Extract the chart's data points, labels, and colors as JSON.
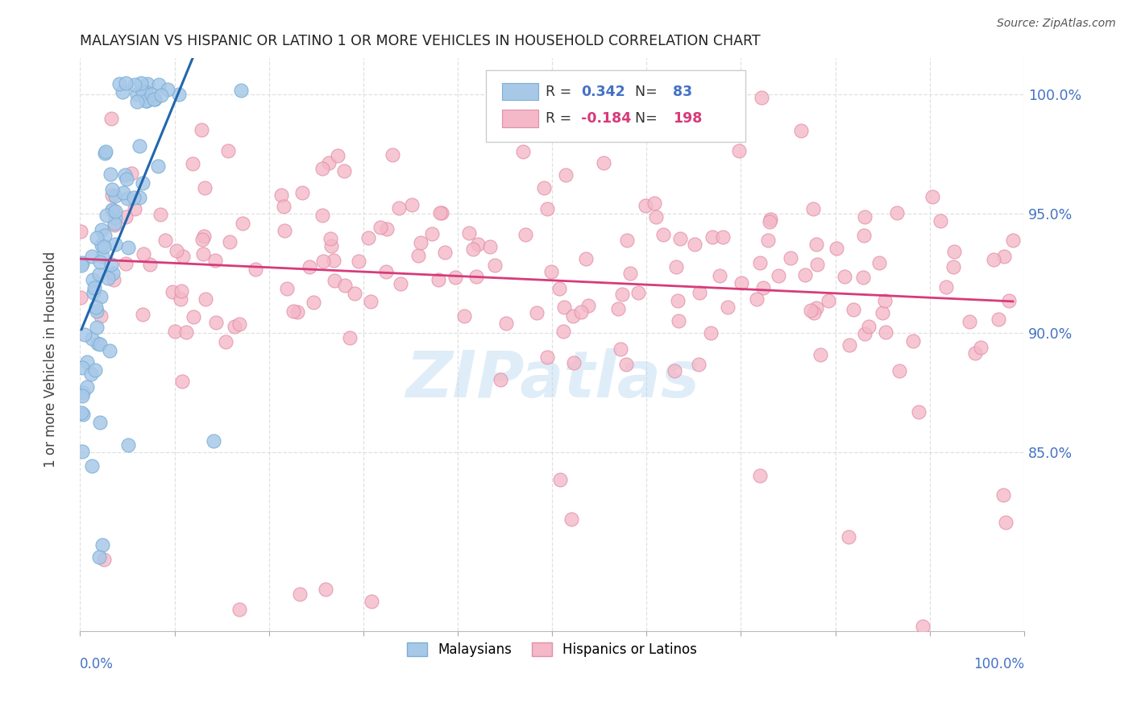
{
  "title": "MALAYSIAN VS HISPANIC OR LATINO 1 OR MORE VEHICLES IN HOUSEHOLD CORRELATION CHART",
  "source": "Source: ZipAtlas.com",
  "ylabel": "1 or more Vehicles in Household",
  "legend_label1": "Malaysians",
  "legend_label2": "Hispanics or Latinos",
  "R1": 0.342,
  "N1": 83,
  "R2": -0.184,
  "N2": 198,
  "color_blue": "#a8c8e8",
  "color_blue_edge": "#7aafd4",
  "color_blue_line": "#2166ac",
  "color_pink": "#f4b8c8",
  "color_pink_edge": "#e090a8",
  "color_pink_line": "#d63b7a",
  "watermark": "ZIPatlas",
  "title_color": "#222222",
  "axis_tick_color": "#4472c4",
  "bg_color": "#ffffff",
  "grid_color": "#e0e0e0",
  "xlim": [
    0.0,
    1.0
  ],
  "ylim": [
    0.775,
    1.015
  ],
  "ytick_vals": [
    0.85,
    0.9,
    0.95,
    1.0
  ],
  "ytick_labels": [
    "85.0%",
    "90.0%",
    "95.0%",
    "100.0%"
  ]
}
